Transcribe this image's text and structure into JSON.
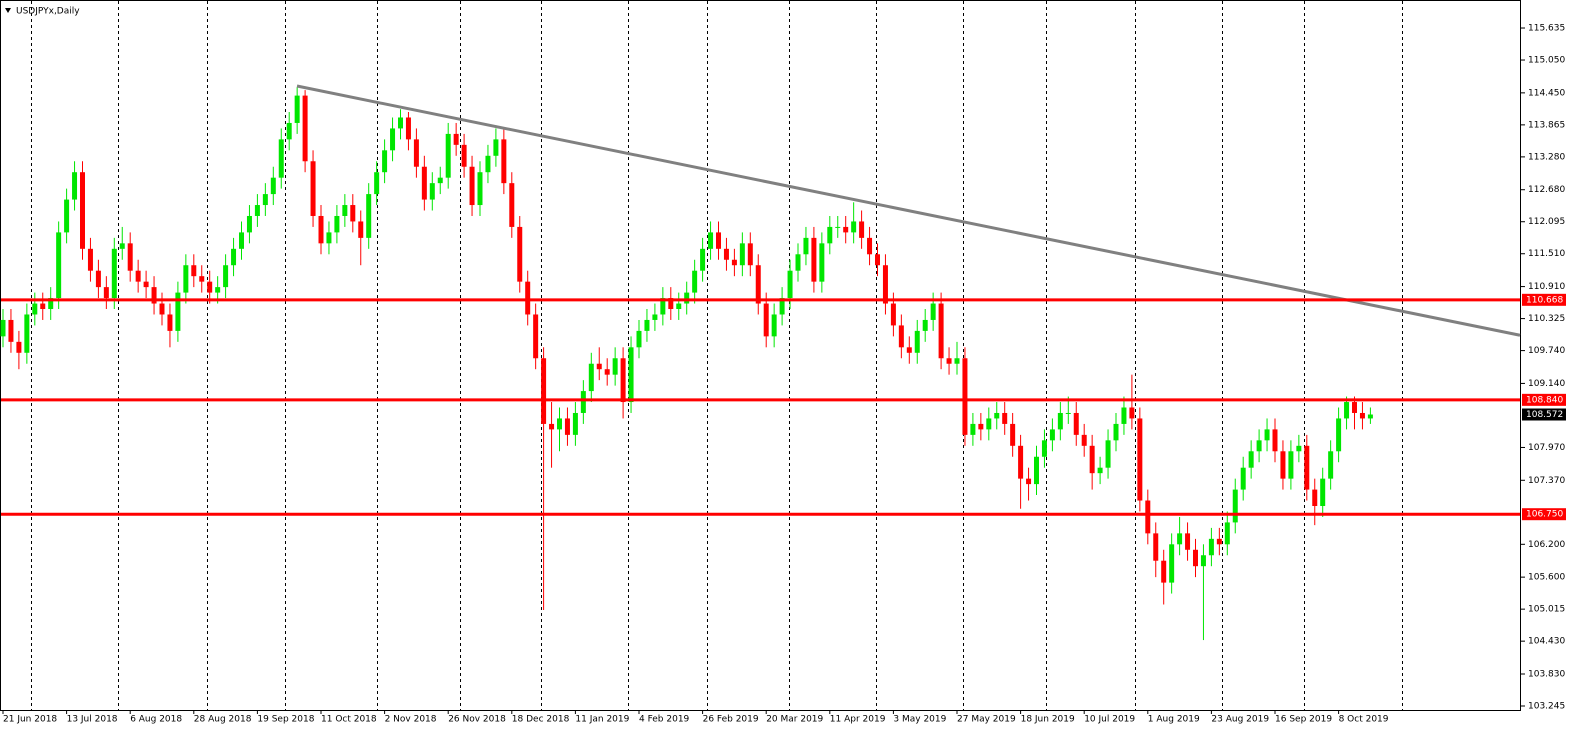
{
  "chart_data": {
    "type": "candlestick",
    "title": "USDJPYx,Daily",
    "categories": [
      "21 Jun 2018",
      null,
      null,
      null,
      null,
      null,
      null,
      null,
      "13 Jul 2018",
      null,
      null,
      null,
      null,
      null,
      null,
      null,
      "6 Aug 2018",
      null,
      null,
      null,
      null,
      null,
      null,
      null,
      "28 Aug 2018",
      null,
      null,
      null,
      null,
      null,
      null,
      null,
      "19 Sep 2018",
      null,
      null,
      null,
      null,
      null,
      null,
      null,
      "11 Oct 2018",
      null,
      null,
      null,
      null,
      null,
      null,
      null,
      "2 Nov 2018",
      null,
      null,
      null,
      null,
      null,
      null,
      null,
      "26 Nov 2018",
      null,
      null,
      null,
      null,
      null,
      null,
      null,
      "18 Dec 2018",
      null,
      null,
      null,
      null,
      null,
      null,
      null,
      "11 Jan 2019",
      null,
      null,
      null,
      null,
      null,
      null,
      null,
      "4 Feb 2019",
      null,
      null,
      null,
      null,
      null,
      null,
      null,
      "26 Feb 2019",
      null,
      null,
      null,
      null,
      null,
      null,
      null,
      "20 Mar 2019",
      null,
      null,
      null,
      null,
      null,
      null,
      null,
      "11 Apr 2019",
      null,
      null,
      null,
      null,
      null,
      null,
      null,
      "3 May 2019",
      null,
      null,
      null,
      null,
      null,
      null,
      null,
      "27 May 2019",
      null,
      null,
      null,
      null,
      null,
      null,
      null,
      "18 Jun 2019",
      null,
      null,
      null,
      null,
      null,
      null,
      null,
      "10 Jul 2019",
      null,
      null,
      null,
      null,
      null,
      null,
      null,
      "1 Aug 2019",
      null,
      null,
      null,
      null,
      null,
      null,
      null,
      "23 Aug 2019",
      null,
      null,
      null,
      null,
      null,
      null,
      null,
      "16 Sep 2019",
      null,
      null,
      null,
      null,
      null,
      null,
      null,
      "8 Oct 2019",
      null,
      null,
      null,
      null
    ],
    "open": [
      110.0,
      110.3,
      109.9,
      109.7,
      110.4,
      110.6,
      110.5,
      110.7,
      111.9,
      112.5,
      113.0,
      111.6,
      111.2,
      110.9,
      110.7,
      111.6,
      111.7,
      111.2,
      111.0,
      110.9,
      110.6,
      110.4,
      110.1,
      110.8,
      111.3,
      111.1,
      111.0,
      110.8,
      110.9,
      111.3,
      111.6,
      111.9,
      112.2,
      112.4,
      112.6,
      112.9,
      113.6,
      113.9,
      114.4,
      113.2,
      112.2,
      111.7,
      111.9,
      112.2,
      112.4,
      112.1,
      111.8,
      112.6,
      113.0,
      113.4,
      113.8,
      114.0,
      113.6,
      113.1,
      112.5,
      112.8,
      112.9,
      113.7,
      113.5,
      113.1,
      112.4,
      113.0,
      113.3,
      113.6,
      112.8,
      112.0,
      111.0,
      110.4,
      109.6,
      108.4,
      108.3,
      108.5,
      108.2,
      108.6,
      109.0,
      109.5,
      109.4,
      109.3,
      109.6,
      108.8,
      109.8,
      110.1,
      110.3,
      110.4,
      110.7,
      110.5,
      110.6,
      110.8,
      111.2,
      111.6,
      111.9,
      111.6,
      111.4,
      111.3,
      111.7,
      111.3,
      110.6,
      110.0,
      110.4,
      110.7,
      111.2,
      111.5,
      111.8,
      111.0,
      111.7,
      112.0,
      112.0,
      111.9,
      112.1,
      111.8,
      111.5,
      111.3,
      110.6,
      110.2,
      109.8,
      109.7,
      110.1,
      110.3,
      110.6,
      109.6,
      109.5,
      109.6,
      108.2,
      108.4,
      108.3,
      108.5,
      108.6,
      108.4,
      108.0,
      107.4,
      107.3,
      107.8,
      108.1,
      108.3,
      108.6,
      108.6,
      108.2,
      108.0,
      107.5,
      107.6,
      108.1,
      108.4,
      108.7,
      108.5,
      107.0,
      106.4,
      105.9,
      105.5,
      106.2,
      106.4,
      106.1,
      105.8,
      106.0,
      106.3,
      106.2,
      106.6,
      107.2,
      107.6,
      107.9,
      108.1,
      108.3,
      107.9,
      107.4,
      107.9,
      108.0,
      107.2,
      106.9,
      107.4,
      107.9,
      108.5,
      108.8,
      108.6,
      108.5
    ],
    "high": [
      110.5,
      110.5,
      110.1,
      110.6,
      110.8,
      110.8,
      110.9,
      112.1,
      112.7,
      113.2,
      113.2,
      111.8,
      111.4,
      111.1,
      111.8,
      112.0,
      111.9,
      111.4,
      111.2,
      111.1,
      110.8,
      110.6,
      111.0,
      111.5,
      111.5,
      111.3,
      111.2,
      111.1,
      111.5,
      111.8,
      112.1,
      112.4,
      112.6,
      112.8,
      113.1,
      113.8,
      114.1,
      114.55,
      114.5,
      113.4,
      112.4,
      112.1,
      112.4,
      112.6,
      112.6,
      112.3,
      112.8,
      113.2,
      113.6,
      114.0,
      114.15,
      114.1,
      113.8,
      113.3,
      113.0,
      113.1,
      113.9,
      113.9,
      113.7,
      113.3,
      113.2,
      113.5,
      113.8,
      113.8,
      113.0,
      112.2,
      111.2,
      110.6,
      109.8,
      108.8,
      108.7,
      108.7,
      108.8,
      109.2,
      109.7,
      109.8,
      109.6,
      109.8,
      109.8,
      110.0,
      110.3,
      110.5,
      110.6,
      110.9,
      110.9,
      110.8,
      111.0,
      111.4,
      111.8,
      112.1,
      112.1,
      111.8,
      111.6,
      111.9,
      111.9,
      111.5,
      110.8,
      110.6,
      110.9,
      111.4,
      111.7,
      112.0,
      112.0,
      111.9,
      112.2,
      112.2,
      112.2,
      112.45,
      112.3,
      112.0,
      111.7,
      111.5,
      110.8,
      110.4,
      110.0,
      110.3,
      110.5,
      110.8,
      110.8,
      109.8,
      109.9,
      109.8,
      108.6,
      108.6,
      108.7,
      108.8,
      108.8,
      108.6,
      108.2,
      107.6,
      108.0,
      108.3,
      108.5,
      108.8,
      108.9,
      108.8,
      108.4,
      108.2,
      107.8,
      108.3,
      108.6,
      108.9,
      109.3,
      108.7,
      107.2,
      106.6,
      106.1,
      106.4,
      106.7,
      106.6,
      106.3,
      106.2,
      106.5,
      106.5,
      106.8,
      107.4,
      107.8,
      108.1,
      108.3,
      108.5,
      108.5,
      108.1,
      108.1,
      108.2,
      108.2,
      107.4,
      107.6,
      108.1,
      108.7,
      108.9,
      108.9,
      108.8,
      108.7
    ],
    "low": [
      109.8,
      109.7,
      109.4,
      109.5,
      110.2,
      110.3,
      110.3,
      110.5,
      111.7,
      112.3,
      111.4,
      111.0,
      110.7,
      110.5,
      110.5,
      111.4,
      111.0,
      110.8,
      110.7,
      110.4,
      110.2,
      109.8,
      109.9,
      110.6,
      110.9,
      110.8,
      110.6,
      110.6,
      110.7,
      111.1,
      111.4,
      111.7,
      112.0,
      112.2,
      112.4,
      112.7,
      113.4,
      113.7,
      113.0,
      112.0,
      111.5,
      111.5,
      111.7,
      112.0,
      111.9,
      111.3,
      111.6,
      112.4,
      112.8,
      113.2,
      113.6,
      113.4,
      112.9,
      112.3,
      112.3,
      112.6,
      112.7,
      113.3,
      112.9,
      112.2,
      112.2,
      112.8,
      113.1,
      112.6,
      111.8,
      110.8,
      110.2,
      109.4,
      105.0,
      107.6,
      107.9,
      108.0,
      108.0,
      108.4,
      108.8,
      109.2,
      109.1,
      109.1,
      108.5,
      108.6,
      109.6,
      109.9,
      110.1,
      110.2,
      110.3,
      110.3,
      110.4,
      110.6,
      111.0,
      111.4,
      111.4,
      111.2,
      111.1,
      111.1,
      111.1,
      110.4,
      109.8,
      109.8,
      110.2,
      110.5,
      111.0,
      111.3,
      110.8,
      110.8,
      111.5,
      111.8,
      111.7,
      111.7,
      111.6,
      111.3,
      111.1,
      110.4,
      110.0,
      109.6,
      109.5,
      109.5,
      109.9,
      110.1,
      109.4,
      109.3,
      109.3,
      108.0,
      108.0,
      108.1,
      108.1,
      108.3,
      108.2,
      107.8,
      106.85,
      107.0,
      107.1,
      107.6,
      107.9,
      108.1,
      108.4,
      108.0,
      107.8,
      107.2,
      107.3,
      107.4,
      107.9,
      108.2,
      108.3,
      106.8,
      106.2,
      105.6,
      105.1,
      105.3,
      106.0,
      105.9,
      105.6,
      104.45,
      105.8,
      106.0,
      106.0,
      106.4,
      107.0,
      107.4,
      107.7,
      107.9,
      107.7,
      107.2,
      107.2,
      107.7,
      107.0,
      106.55,
      106.7,
      107.2,
      107.7,
      108.3,
      108.3,
      108.3,
      108.4
    ],
    "close": [
      110.3,
      109.9,
      109.7,
      110.4,
      110.6,
      110.5,
      110.7,
      111.9,
      112.5,
      113.0,
      111.6,
      111.2,
      110.9,
      110.7,
      111.6,
      111.7,
      111.2,
      111.0,
      110.9,
      110.6,
      110.4,
      110.1,
      110.8,
      111.3,
      111.1,
      111.0,
      110.8,
      110.9,
      111.3,
      111.6,
      111.9,
      112.2,
      112.4,
      112.6,
      112.9,
      113.6,
      113.9,
      114.4,
      113.2,
      112.2,
      111.7,
      111.9,
      112.2,
      112.4,
      112.1,
      111.8,
      112.6,
      113.0,
      113.4,
      113.8,
      114.0,
      113.6,
      113.1,
      112.5,
      112.8,
      112.9,
      113.7,
      113.5,
      113.1,
      112.4,
      113.0,
      113.3,
      113.6,
      112.8,
      112.0,
      111.0,
      110.4,
      109.6,
      108.4,
      108.3,
      108.5,
      108.2,
      108.6,
      109.0,
      109.5,
      109.4,
      109.3,
      109.6,
      108.8,
      109.8,
      110.1,
      110.3,
      110.4,
      110.7,
      110.5,
      110.6,
      110.8,
      111.2,
      111.6,
      111.9,
      111.6,
      111.4,
      111.3,
      111.7,
      111.3,
      110.6,
      110.0,
      110.4,
      110.7,
      111.2,
      111.5,
      111.8,
      111.0,
      111.7,
      112.0,
      112.0,
      111.9,
      112.1,
      111.8,
      111.5,
      111.3,
      110.6,
      110.2,
      109.8,
      109.7,
      110.1,
      110.3,
      110.6,
      109.6,
      109.5,
      109.6,
      108.2,
      108.4,
      108.3,
      108.5,
      108.6,
      108.4,
      108.0,
      107.4,
      107.3,
      107.8,
      108.1,
      108.3,
      108.6,
      108.6,
      108.2,
      108.0,
      107.5,
      107.6,
      108.1,
      108.4,
      108.7,
      108.5,
      107.0,
      106.4,
      105.9,
      105.5,
      106.2,
      106.4,
      106.1,
      105.8,
      106.0,
      106.3,
      106.2,
      106.6,
      107.2,
      107.6,
      107.9,
      108.1,
      108.3,
      107.9,
      107.4,
      107.9,
      108.0,
      107.2,
      106.9,
      107.4,
      107.9,
      108.5,
      108.8,
      108.6,
      108.5,
      108.572
    ],
    "up_color": "#00e600",
    "down_color": "#ff0000",
    "ylim": [
      103.172,
      116.147
    ],
    "yticks": [
      115.635,
      {
        "value": 115.05,
        "label": "115.050"
      },
      {
        "value": 114.45,
        "label": "114.450"
      },
      113.865,
      {
        "value": 113.28,
        "label": "113.280"
      },
      {
        "value": 112.68,
        "label": "112.680"
      },
      112.095,
      {
        "value": 111.51,
        "label": "111.510"
      },
      {
        "value": 110.91,
        "label": "110.910"
      },
      110.325,
      {
        "value": 109.74,
        "label": "109.740"
      },
      {
        "value": 109.14,
        "label": "109.140"
      },
      {
        "value": 107.97,
        "label": "107.970"
      },
      {
        "value": 107.37,
        "label": "107.370"
      },
      {
        "value": 106.2,
        "label": "106.200"
      },
      {
        "value": 105.6,
        "label": "105.600"
      },
      105.015,
      {
        "value": 104.43,
        "label": "104.430"
      },
      {
        "value": 103.83,
        "label": "103.830"
      },
      103.245
    ],
    "levels": [
      110.668,
      {
        "value": 108.84,
        "label": "108.840"
      },
      {
        "value": 106.75,
        "label": "106.750"
      }
    ],
    "level_color": "#ff0000",
    "trendline": {
      "values": [
        114.575,
        110.02
      ],
      "color": "#808080"
    }
  }
}
